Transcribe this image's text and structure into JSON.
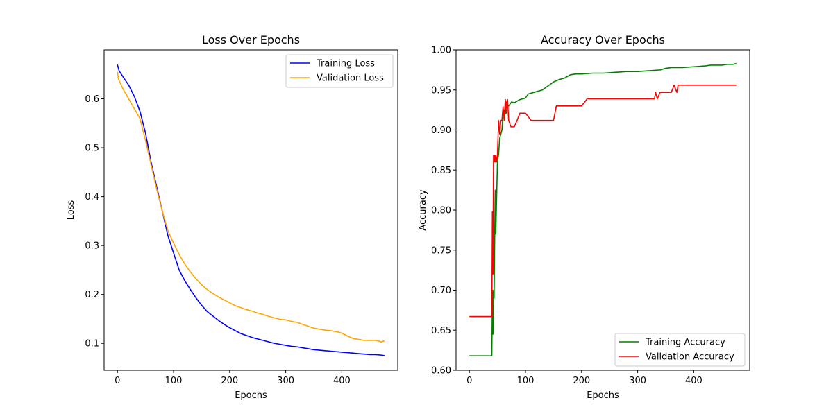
{
  "chart_data": [
    {
      "type": "line",
      "title": "Loss Over Epochs",
      "xlabel": "Epochs",
      "ylabel": "Loss",
      "xlim": [
        -23.8,
        499.8
      ],
      "ylim": [
        0.045,
        0.7
      ],
      "xticks": [
        0,
        100,
        200,
        300,
        400
      ],
      "xtick_labels": [
        "0",
        "100",
        "200",
        "300",
        "400"
      ],
      "yticks": [
        0.1,
        0.2,
        0.3,
        0.4,
        0.5,
        0.6
      ],
      "ytick_labels": [
        "0.1",
        "0.2",
        "0.3",
        "0.4",
        "0.5",
        "0.6"
      ],
      "grid": false,
      "legend_position": "top-right",
      "series": [
        {
          "name": "Training Loss",
          "color": "#0000ff",
          "points": [
            [
              0,
              0.67
            ],
            [
              3,
              0.657
            ],
            [
              10,
              0.645
            ],
            [
              20,
              0.628
            ],
            [
              30,
              0.605
            ],
            [
              40,
              0.575
            ],
            [
              50,
              0.53
            ],
            [
              60,
              0.47
            ],
            [
              70,
              0.42
            ],
            [
              80,
              0.37
            ],
            [
              90,
              0.32
            ],
            [
              100,
              0.285
            ],
            [
              110,
              0.25
            ],
            [
              120,
              0.228
            ],
            [
              130,
              0.21
            ],
            [
              140,
              0.193
            ],
            [
              150,
              0.178
            ],
            [
              160,
              0.165
            ],
            [
              170,
              0.156
            ],
            [
              180,
              0.147
            ],
            [
              190,
              0.139
            ],
            [
              200,
              0.132
            ],
            [
              210,
              0.126
            ],
            [
              220,
              0.12
            ],
            [
              230,
              0.116
            ],
            [
              240,
              0.112
            ],
            [
              250,
              0.109
            ],
            [
              260,
              0.106
            ],
            [
              270,
              0.103
            ],
            [
              280,
              0.1
            ],
            [
              290,
              0.098
            ],
            [
              300,
              0.096
            ],
            [
              310,
              0.094
            ],
            [
              320,
              0.093
            ],
            [
              330,
              0.091
            ],
            [
              340,
              0.089
            ],
            [
              350,
              0.087
            ],
            [
              360,
              0.086
            ],
            [
              370,
              0.085
            ],
            [
              380,
              0.084
            ],
            [
              390,
              0.083
            ],
            [
              400,
              0.082
            ],
            [
              410,
              0.081
            ],
            [
              420,
              0.08
            ],
            [
              430,
              0.079
            ],
            [
              440,
              0.078
            ],
            [
              450,
              0.077
            ],
            [
              460,
              0.077
            ],
            [
              470,
              0.076
            ],
            [
              476,
              0.075
            ]
          ]
        },
        {
          "name": "Validation Loss",
          "color": "#ffa500",
          "points": [
            [
              0,
              0.655
            ],
            [
              2,
              0.64
            ],
            [
              5,
              0.632
            ],
            [
              10,
              0.62
            ],
            [
              20,
              0.6
            ],
            [
              30,
              0.58
            ],
            [
              40,
              0.56
            ],
            [
              50,
              0.515
            ],
            [
              60,
              0.465
            ],
            [
              70,
              0.415
            ],
            [
              80,
              0.37
            ],
            [
              90,
              0.33
            ],
            [
              100,
              0.305
            ],
            [
              110,
              0.282
            ],
            [
              120,
              0.262
            ],
            [
              130,
              0.246
            ],
            [
              140,
              0.232
            ],
            [
              150,
              0.22
            ],
            [
              160,
              0.21
            ],
            [
              170,
              0.202
            ],
            [
              180,
              0.195
            ],
            [
              190,
              0.189
            ],
            [
              200,
              0.183
            ],
            [
              210,
              0.177
            ],
            [
              220,
              0.173
            ],
            [
              230,
              0.169
            ],
            [
              240,
              0.166
            ],
            [
              250,
              0.162
            ],
            [
              260,
              0.159
            ],
            [
              270,
              0.155
            ],
            [
              280,
              0.152
            ],
            [
              290,
              0.149
            ],
            [
              300,
              0.148
            ],
            [
              310,
              0.145
            ],
            [
              320,
              0.143
            ],
            [
              330,
              0.139
            ],
            [
              340,
              0.135
            ],
            [
              350,
              0.131
            ],
            [
              360,
              0.129
            ],
            [
              370,
              0.127
            ],
            [
              380,
              0.126
            ],
            [
              390,
              0.124
            ],
            [
              400,
              0.121
            ],
            [
              410,
              0.115
            ],
            [
              420,
              0.11
            ],
            [
              430,
              0.108
            ],
            [
              440,
              0.106
            ],
            [
              450,
              0.106
            ],
            [
              460,
              0.106
            ],
            [
              465,
              0.105
            ],
            [
              470,
              0.103
            ],
            [
              476,
              0.105
            ]
          ]
        }
      ]
    },
    {
      "type": "line",
      "title": "Accuracy Over Epochs",
      "xlabel": "Epochs",
      "ylabel": "Accuracy",
      "xlim": [
        -23.8,
        499.8
      ],
      "ylim": [
        0.6,
        1.0
      ],
      "xticks": [
        0,
        100,
        200,
        300,
        400
      ],
      "xtick_labels": [
        "0",
        "100",
        "200",
        "300",
        "400"
      ],
      "yticks": [
        0.6,
        0.65,
        0.7,
        0.75,
        0.8,
        0.85,
        0.9,
        0.95,
        1.0
      ],
      "ytick_labels": [
        "0.60",
        "0.65",
        "0.70",
        "0.75",
        "0.80",
        "0.85",
        "0.90",
        "0.95",
        "1.00"
      ],
      "grid": false,
      "legend_position": "bottom-right",
      "series": [
        {
          "name": "Training Accuracy",
          "color": "#008000",
          "points": [
            [
              0,
              0.618
            ],
            [
              40,
              0.618
            ],
            [
              41,
              0.7
            ],
            [
              42,
              0.645
            ],
            [
              43,
              0.7
            ],
            [
              44,
              0.69
            ],
            [
              45,
              0.76
            ],
            [
              46,
              0.825
            ],
            [
              47,
              0.77
            ],
            [
              48,
              0.8
            ],
            [
              50,
              0.86
            ],
            [
              52,
              0.87
            ],
            [
              54,
              0.89
            ],
            [
              56,
              0.895
            ],
            [
              58,
              0.9
            ],
            [
              60,
              0.92
            ],
            [
              62,
              0.925
            ],
            [
              64,
              0.92
            ],
            [
              66,
              0.935
            ],
            [
              68,
              0.93
            ],
            [
              70,
              0.93
            ],
            [
              75,
              0.935
            ],
            [
              80,
              0.934
            ],
            [
              90,
              0.938
            ],
            [
              100,
              0.94
            ],
            [
              105,
              0.945
            ],
            [
              110,
              0.946
            ],
            [
              120,
              0.948
            ],
            [
              130,
              0.95
            ],
            [
              140,
              0.955
            ],
            [
              150,
              0.96
            ],
            [
              160,
              0.963
            ],
            [
              170,
              0.965
            ],
            [
              180,
              0.969
            ],
            [
              190,
              0.97
            ],
            [
              200,
              0.97
            ],
            [
              220,
              0.971
            ],
            [
              240,
              0.971
            ],
            [
              260,
              0.972
            ],
            [
              280,
              0.973
            ],
            [
              300,
              0.973
            ],
            [
              320,
              0.974
            ],
            [
              340,
              0.975
            ],
            [
              350,
              0.977
            ],
            [
              360,
              0.978
            ],
            [
              380,
              0.978
            ],
            [
              400,
              0.979
            ],
            [
              420,
              0.98
            ],
            [
              430,
              0.981
            ],
            [
              440,
              0.981
            ],
            [
              450,
              0.981
            ],
            [
              460,
              0.982
            ],
            [
              470,
              0.982
            ],
            [
              476,
              0.983
            ]
          ]
        },
        {
          "name": "Validation Accuracy",
          "color": "#ff0000",
          "points": [
            [
              0,
              0.667
            ],
            [
              40,
              0.667
            ],
            [
              41,
              0.798
            ],
            [
              42,
              0.72
            ],
            [
              43,
              0.868
            ],
            [
              44,
              0.86
            ],
            [
              45,
              0.868
            ],
            [
              46,
              0.86
            ],
            [
              47,
              0.868
            ],
            [
              48,
              0.86
            ],
            [
              50,
              0.868
            ],
            [
              52,
              0.912
            ],
            [
              54,
              0.895
            ],
            [
              56,
              0.912
            ],
            [
              58,
              0.912
            ],
            [
              60,
              0.929
            ],
            [
              62,
              0.912
            ],
            [
              64,
              0.938
            ],
            [
              66,
              0.921
            ],
            [
              68,
              0.938
            ],
            [
              70,
              0.912
            ],
            [
              74,
              0.904
            ],
            [
              80,
              0.904
            ],
            [
              85,
              0.912
            ],
            [
              90,
              0.921
            ],
            [
              100,
              0.921
            ],
            [
              110,
              0.912
            ],
            [
              120,
              0.912
            ],
            [
              130,
              0.912
            ],
            [
              140,
              0.912
            ],
            [
              150,
              0.912
            ],
            [
              155,
              0.93
            ],
            [
              160,
              0.93
            ],
            [
              180,
              0.93
            ],
            [
              200,
              0.93
            ],
            [
              210,
              0.939
            ],
            [
              240,
              0.939
            ],
            [
              270,
              0.939
            ],
            [
              300,
              0.939
            ],
            [
              320,
              0.939
            ],
            [
              330,
              0.939
            ],
            [
              332,
              0.947
            ],
            [
              335,
              0.939
            ],
            [
              340,
              0.947
            ],
            [
              345,
              0.947
            ],
            [
              350,
              0.947
            ],
            [
              360,
              0.947
            ],
            [
              365,
              0.956
            ],
            [
              370,
              0.947
            ],
            [
              372,
              0.956
            ],
            [
              380,
              0.956
            ],
            [
              400,
              0.956
            ],
            [
              420,
              0.956
            ],
            [
              440,
              0.956
            ],
            [
              460,
              0.956
            ],
            [
              476,
              0.956
            ]
          ]
        }
      ]
    }
  ]
}
